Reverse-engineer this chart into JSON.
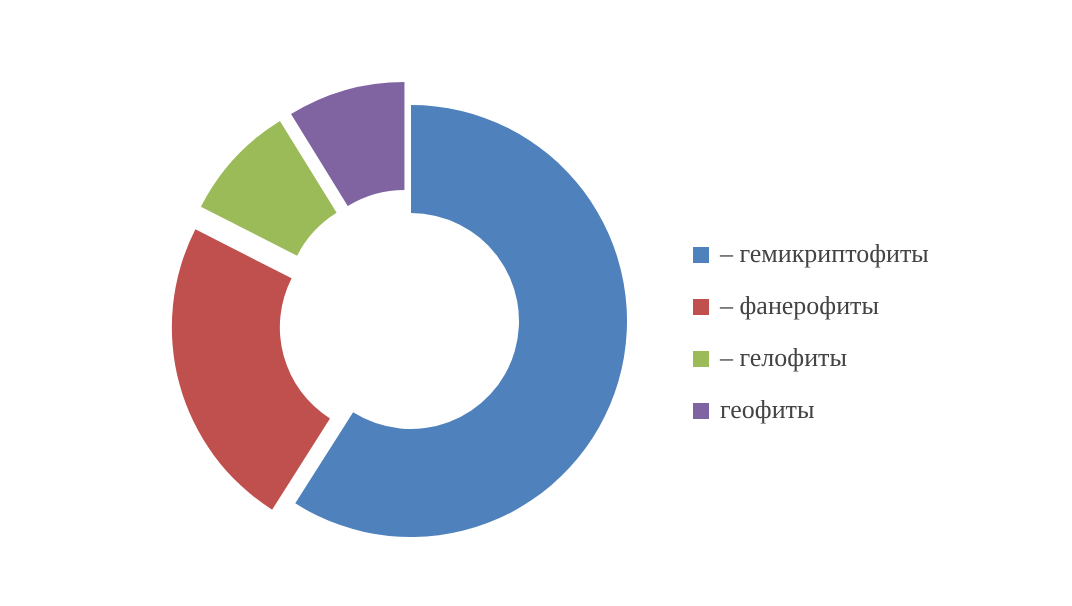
{
  "chart_data": {
    "type": "donut",
    "categories": [
      "– гемикриптофиты",
      "– фанерофиты",
      "– гелофиты",
      "геофиты"
    ],
    "values": [
      59,
      23.5,
      8.7,
      8.8
    ],
    "colors": [
      "#4f81bd",
      "#c0504d",
      "#9bbb59",
      "#8064a2"
    ],
    "legend": "right"
  }
}
